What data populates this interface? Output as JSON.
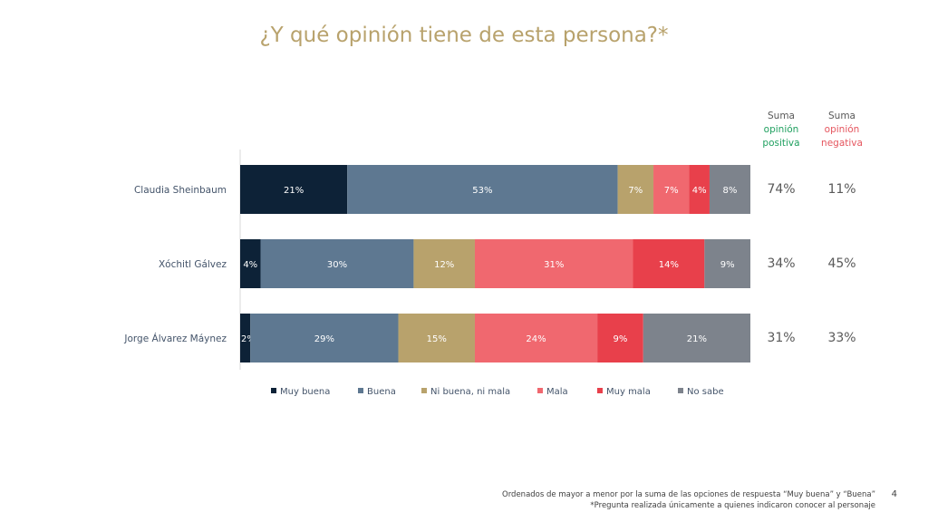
{
  "title": "¿Y qué opinión tiene de esta persona?*",
  "headers": {
    "positive": {
      "line1": "Suma",
      "line2": "opinión",
      "line3": "positiva",
      "color": "#20a060"
    },
    "negative": {
      "line1": "Suma",
      "line2": "opinión",
      "line3": "negativa",
      "color": "#e5555e"
    }
  },
  "chart_data": {
    "type": "bar",
    "orientation": "horizontal",
    "stacked": true,
    "categories": [
      "Claudia Sheinbaum",
      "Xóchitl Gálvez",
      "Jorge Álvarez Máynez"
    ],
    "series": [
      {
        "name": "Muy buena",
        "color": "#0d2237",
        "values": [
          21,
          4,
          2
        ]
      },
      {
        "name": "Buena",
        "color": "#5e7891",
        "values": [
          53,
          30,
          29
        ]
      },
      {
        "name": "Ni buena, ni mala",
        "color": "#b8a26c",
        "values": [
          7,
          12,
          15
        ]
      },
      {
        "name": "Mala",
        "color": "#f0686f",
        "values": [
          7,
          31,
          24
        ]
      },
      {
        "name": "Muy mala",
        "color": "#e8404b",
        "values": [
          4,
          14,
          9
        ]
      },
      {
        "name": "No sabe",
        "color": "#7d838c",
        "values": [
          8,
          9,
          21
        ]
      }
    ],
    "labels": [
      [
        "21%",
        "53%",
        "7%",
        "7%",
        "4%",
        "8%"
      ],
      [
        "4%",
        "30%",
        "12%",
        "31%",
        "14%",
        "9%"
      ],
      [
        "2%",
        "29%",
        "15%",
        "24%",
        "9%",
        "21%"
      ]
    ],
    "sum_positive": [
      "74%",
      "34%",
      "31%"
    ],
    "sum_negative": [
      "11%",
      "45%",
      "33%"
    ],
    "legend": "bottom",
    "xlim": [
      0,
      100
    ]
  },
  "footer": {
    "line1": "Ordenados de mayor a menor por la suma de las opciones de respuesta “Muy buena” y “Buena”",
    "line2": "*Pregunta realizada únicamente a quienes indicaron conocer al personaje"
  },
  "page_number": "4"
}
